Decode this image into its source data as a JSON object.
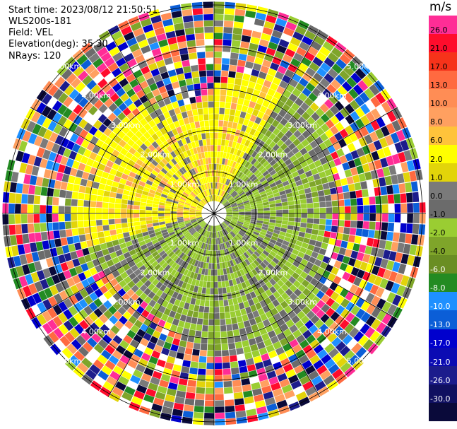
{
  "header": {
    "start_time": "Start time: 2023/08/12 21:50:51",
    "instrument": "WLS200s-181",
    "field": "Field: VEL",
    "elevation": "Elevation(deg): 35.30",
    "nrays": "NRays: 120"
  },
  "colorbar": {
    "unit": "m/s",
    "ticks": [
      "26.0",
      "21.0",
      "17.0",
      "13.0",
      "10.0",
      "8.0",
      "6.0",
      "2.0",
      "1.0",
      "0.0",
      "-1.0",
      "-2.0",
      "-4.0",
      "-6.0",
      "-8.0",
      "-10.0",
      "-13.0",
      "-17.0",
      "-21.0",
      "-26.0",
      "-30.0"
    ],
    "colors": [
      "#ff2d96",
      "#ff0c2c",
      "#f6331a",
      "#ff6a40",
      "#ff8d55",
      "#ffa060",
      "#ffc33b",
      "#ffff00",
      "#e2d40a",
      "#7a7a7a",
      "#6b6b6b",
      "#9acd32",
      "#7fa52a",
      "#6a8e23",
      "#238b22",
      "#1e90ff",
      "#0b5ed7",
      "#0000cd",
      "#0b0bb3",
      "#1c1c8c",
      "#101060",
      "#0a0a3a"
    ]
  },
  "ppi": {
    "range_rings_label": [
      "1.00km",
      "2.00km",
      "3.00km",
      "4.00km",
      "5.00km"
    ],
    "nrays": 120
  }
}
